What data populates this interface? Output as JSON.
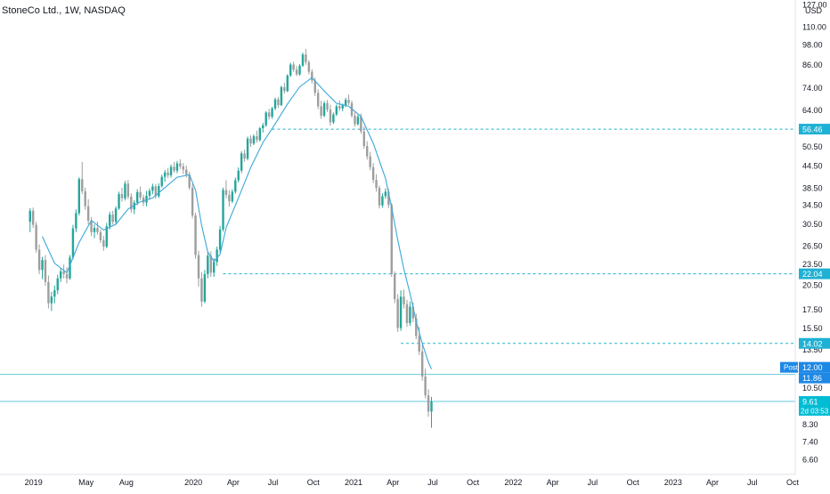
{
  "header": {
    "title": "StoneCo Ltd., 1W, NASDAQ"
  },
  "colors": {
    "up": "#26a69a",
    "down": "#9e9e9e",
    "ema": "#3ba7d8",
    "level_line": "#1fb1d4",
    "price_line": "#64c8dc",
    "post_badge": "#1e88e5",
    "last_badge": "#00bcd4",
    "axis_text": "#131722"
  },
  "chart_data": {
    "type": "candlestick",
    "title": "StoneCo Ltd., 1W, NASDAQ",
    "currency": "USD",
    "y_scale": "log",
    "ylim": [
      6.3,
      127
    ],
    "yticks": [
      "6.60",
      "7.40",
      "8.30",
      "9.30",
      "10.50",
      "13.50",
      "15.50",
      "17.50",
      "20.50",
      "23.50",
      "26.50",
      "30.50",
      "34.50",
      "38.50",
      "44.50",
      "50.50",
      "64.00",
      "74.00",
      "86.00",
      "98.00",
      "110.00",
      "127.00"
    ],
    "xlim": [
      "2018-11-26",
      "2023-10-01"
    ],
    "xticks": [
      {
        "date": "2019-01-01",
        "label": "2019"
      },
      {
        "date": "2019-05-01",
        "label": "May"
      },
      {
        "date": "2019-08-01",
        "label": "Aug"
      },
      {
        "date": "2020-01-01",
        "label": "2020"
      },
      {
        "date": "2020-04-01",
        "label": "Apr"
      },
      {
        "date": "2020-07-01",
        "label": "Jul"
      },
      {
        "date": "2020-10-01",
        "label": "Oct"
      },
      {
        "date": "2021-01-01",
        "label": "2021"
      },
      {
        "date": "2021-04-01",
        "label": "Apr"
      },
      {
        "date": "2021-07-01",
        "label": "Jul"
      },
      {
        "date": "2021-10-01",
        "label": "Oct"
      },
      {
        "date": "2022-01-01",
        "label": "2022"
      },
      {
        "date": "2022-04-01",
        "label": "Apr"
      },
      {
        "date": "2022-07-01",
        "label": "Jul"
      },
      {
        "date": "2022-10-01",
        "label": "Oct"
      },
      {
        "date": "2023-01-01",
        "label": "2023"
      },
      {
        "date": "2023-04-01",
        "label": "Apr"
      },
      {
        "date": "2023-07-01",
        "label": "Jul"
      },
      {
        "date": "2023-10-01",
        "label": "Oct"
      }
    ],
    "first_week": "2018-12-24",
    "candles": [
      [
        30.9,
        33.8,
        28.9,
        33.2
      ],
      [
        33.2,
        33.9,
        29.7,
        30.3
      ],
      [
        30.3,
        30.9,
        25.3,
        25.8
      ],
      [
        25.8,
        26.7,
        22.0,
        22.6
      ],
      [
        22.6,
        24.6,
        21.3,
        24.1
      ],
      [
        24.1,
        24.9,
        20.4,
        20.9
      ],
      [
        20.9,
        21.8,
        17.6,
        18.2
      ],
      [
        18.2,
        19.6,
        17.3,
        19.0
      ],
      [
        19.0,
        20.4,
        18.2,
        19.8
      ],
      [
        19.8,
        21.9,
        19.3,
        21.4
      ],
      [
        21.4,
        22.9,
        20.9,
        22.4
      ],
      [
        22.4,
        23.4,
        21.4,
        22.0
      ],
      [
        22.0,
        23.0,
        20.7,
        21.4
      ],
      [
        21.4,
        24.9,
        21.2,
        24.5
      ],
      [
        24.5,
        30.3,
        24.2,
        29.6
      ],
      [
        29.6,
        33.5,
        28.9,
        32.7
      ],
      [
        32.7,
        41.3,
        32.2,
        40.8
      ],
      [
        40.8,
        45.6,
        37.0,
        37.7
      ],
      [
        37.7,
        38.6,
        33.4,
        34.2
      ],
      [
        34.2,
        35.8,
        30.4,
        31.1
      ],
      [
        31.1,
        31.9,
        28.2,
        28.9
      ],
      [
        28.9,
        30.4,
        27.8,
        29.7
      ],
      [
        29.7,
        31.0,
        28.4,
        28.9
      ],
      [
        28.9,
        29.4,
        26.9,
        27.4
      ],
      [
        27.4,
        28.2,
        25.6,
        26.3
      ],
      [
        26.3,
        30.7,
        26.0,
        30.0
      ],
      [
        30.0,
        33.0,
        29.4,
        32.4
      ],
      [
        32.4,
        33.2,
        30.3,
        30.9
      ],
      [
        30.9,
        34.2,
        30.5,
        33.7
      ],
      [
        33.7,
        37.6,
        33.4,
        37.0
      ],
      [
        37.0,
        38.6,
        35.2,
        36.0
      ],
      [
        36.0,
        40.3,
        35.5,
        39.6
      ],
      [
        39.6,
        40.6,
        35.8,
        36.4
      ],
      [
        36.4,
        37.2,
        32.8,
        33.5
      ],
      [
        33.5,
        35.6,
        32.5,
        35.0
      ],
      [
        35.0,
        38.2,
        34.4,
        37.5
      ],
      [
        37.5,
        38.9,
        35.6,
        36.2
      ],
      [
        36.2,
        36.9,
        34.2,
        35.0
      ],
      [
        35.0,
        37.8,
        34.2,
        36.6
      ],
      [
        36.6,
        38.4,
        35.7,
        37.8
      ],
      [
        37.8,
        39.6,
        37.0,
        38.9
      ],
      [
        38.9,
        39.5,
        35.9,
        36.5
      ],
      [
        36.5,
        39.7,
        36.1,
        39.0
      ],
      [
        39.0,
        42.0,
        38.6,
        41.4
      ],
      [
        41.4,
        43.3,
        40.1,
        42.6
      ],
      [
        42.6,
        43.8,
        41.1,
        41.8
      ],
      [
        41.8,
        44.9,
        41.2,
        44.2
      ],
      [
        44.2,
        45.6,
        42.5,
        43.1
      ],
      [
        43.1,
        45.9,
        42.4,
        45.2
      ],
      [
        45.2,
        46.4,
        43.6,
        44.3
      ],
      [
        44.3,
        45.3,
        42.2,
        43.4
      ],
      [
        43.4,
        44.6,
        41.2,
        42.0
      ],
      [
        42.0,
        42.8,
        38.0,
        38.6
      ],
      [
        38.6,
        39.6,
        31.6,
        32.2
      ],
      [
        32.2,
        32.8,
        24.3,
        24.9
      ],
      [
        24.9,
        25.6,
        20.3,
        21.4
      ],
      [
        21.4,
        22.3,
        17.8,
        18.4
      ],
      [
        18.4,
        22.6,
        18.2,
        22.0
      ],
      [
        22.0,
        25.4,
        21.4,
        24.8
      ],
      [
        24.8,
        25.5,
        21.6,
        22.2
      ],
      [
        22.2,
        24.4,
        21.6,
        23.8
      ],
      [
        23.8,
        26.3,
        23.2,
        25.8
      ],
      [
        25.8,
        30.1,
        25.3,
        29.4
      ],
      [
        29.4,
        38.6,
        29.0,
        38.0
      ],
      [
        38.0,
        40.5,
        36.0,
        36.8
      ],
      [
        36.8,
        37.9,
        34.1,
        35.3
      ],
      [
        35.3,
        38.2,
        34.9,
        37.6
      ],
      [
        37.6,
        41.2,
        37.1,
        40.5
      ],
      [
        40.5,
        44.0,
        39.9,
        43.1
      ],
      [
        43.1,
        48.9,
        42.4,
        48.2
      ],
      [
        48.2,
        49.4,
        45.7,
        46.6
      ],
      [
        46.6,
        53.8,
        46.1,
        53.1
      ],
      [
        53.1,
        54.2,
        50.3,
        51.4
      ],
      [
        51.4,
        54.6,
        50.9,
        53.9
      ],
      [
        53.9,
        55.9,
        51.7,
        52.6
      ],
      [
        52.6,
        57.3,
        52.1,
        56.8
      ],
      [
        56.8,
        58.8,
        55.2,
        57.9
      ],
      [
        57.9,
        63.5,
        57.3,
        62.9
      ],
      [
        62.9,
        64.4,
        60.1,
        61.2
      ],
      [
        61.2,
        65.3,
        60.4,
        64.6
      ],
      [
        64.6,
        69.3,
        63.9,
        68.5
      ],
      [
        68.5,
        69.6,
        64.8,
        66.0
      ],
      [
        66.0,
        74.9,
        65.6,
        74.2
      ],
      [
        74.2,
        76.4,
        71.1,
        72.3
      ],
      [
        72.3,
        80.7,
        71.8,
        80.0
      ],
      [
        80.0,
        86.9,
        79.3,
        85.9
      ],
      [
        85.9,
        87.5,
        81.9,
        83.1
      ],
      [
        83.1,
        85.1,
        79.7,
        80.6
      ],
      [
        80.6,
        86.1,
        79.9,
        85.3
      ],
      [
        85.3,
        92.9,
        84.6,
        91.7
      ],
      [
        91.7,
        95.1,
        85.8,
        87.3
      ],
      [
        87.3,
        88.4,
        80.6,
        82.0
      ],
      [
        82.0,
        83.4,
        76.0,
        77.4
      ],
      [
        77.4,
        78.9,
        70.0,
        71.5
      ],
      [
        71.5,
        73.2,
        64.3,
        65.5
      ],
      [
        65.5,
        67.9,
        60.4,
        61.6
      ],
      [
        61.6,
        67.7,
        61.0,
        66.8
      ],
      [
        66.8,
        68.2,
        63.1,
        64.1
      ],
      [
        64.1,
        66.2,
        57.8,
        59.0
      ],
      [
        59.0,
        62.9,
        58.4,
        62.1
      ],
      [
        62.1,
        66.3,
        61.5,
        65.5
      ],
      [
        65.5,
        68.0,
        63.6,
        64.6
      ],
      [
        64.6,
        66.7,
        63.4,
        65.9
      ],
      [
        65.9,
        69.2,
        65.2,
        68.3
      ],
      [
        68.3,
        70.7,
        66.0,
        66.9
      ],
      [
        66.9,
        68.0,
        60.8,
        61.6
      ],
      [
        61.6,
        63.0,
        57.4,
        58.3
      ],
      [
        58.3,
        62.1,
        57.8,
        61.2
      ],
      [
        61.2,
        62.5,
        54.8,
        55.6
      ],
      [
        55.6,
        57.4,
        49.7,
        50.6
      ],
      [
        50.6,
        52.2,
        46.3,
        47.3
      ],
      [
        47.3,
        48.7,
        43.2,
        44.1
      ],
      [
        44.1,
        45.3,
        39.8,
        40.6
      ],
      [
        40.6,
        42.1,
        37.6,
        38.5
      ],
      [
        38.5,
        39.1,
        33.7,
        34.4
      ],
      [
        34.4,
        37.2,
        33.9,
        36.5
      ],
      [
        36.5,
        38.4,
        35.9,
        37.6
      ],
      [
        37.6,
        38.3,
        33.8,
        34.5
      ],
      [
        34.5,
        34.9,
        21.6,
        22.0
      ],
      [
        22.0,
        22.4,
        18.2,
        18.7
      ],
      [
        18.7,
        19.3,
        15.1,
        15.5
      ],
      [
        15.5,
        19.8,
        15.2,
        19.0
      ],
      [
        19.0,
        19.9,
        17.6,
        18.1
      ],
      [
        18.1,
        18.6,
        15.6,
        16.0
      ],
      [
        16.0,
        18.4,
        15.7,
        17.8
      ],
      [
        17.8,
        18.3,
        16.1,
        16.5
      ],
      [
        16.5,
        17.0,
        14.4,
        14.7
      ],
      [
        14.7,
        15.6,
        13.0,
        13.3
      ],
      [
        13.3,
        13.9,
        11.0,
        11.3
      ],
      [
        11.3,
        11.9,
        9.8,
        10.0
      ],
      [
        10.0,
        10.4,
        8.7,
        9.0
      ],
      [
        9.0,
        9.9,
        8.1,
        9.61
      ]
    ],
    "ema": [
      [
        4,
        28.1
      ],
      [
        8,
        23.6
      ],
      [
        12,
        22.2
      ],
      [
        16,
        27.0
      ],
      [
        20,
        31.2
      ],
      [
        24,
        29.3
      ],
      [
        28,
        30.4
      ],
      [
        32,
        33.6
      ],
      [
        36,
        35.2
      ],
      [
        40,
        36.1
      ],
      [
        44,
        38.6
      ],
      [
        48,
        41.3
      ],
      [
        52,
        42.0
      ],
      [
        54,
        38.0
      ],
      [
        56,
        30.2
      ],
      [
        58,
        25.4
      ],
      [
        60,
        23.9
      ],
      [
        62,
        25.0
      ],
      [
        64,
        29.8
      ],
      [
        68,
        36.1
      ],
      [
        72,
        44.0
      ],
      [
        76,
        51.8
      ],
      [
        80,
        58.4
      ],
      [
        84,
        66.5
      ],
      [
        88,
        74.3
      ],
      [
        92,
        78.9
      ],
      [
        96,
        72.3
      ],
      [
        100,
        66.8
      ],
      [
        104,
        65.5
      ],
      [
        108,
        61.3
      ],
      [
        112,
        51.5
      ],
      [
        116,
        41.0
      ],
      [
        118,
        33.9
      ],
      [
        120,
        27.5
      ],
      [
        122,
        22.7
      ],
      [
        124,
        19.4
      ],
      [
        126,
        16.2
      ],
      [
        128,
        14.0
      ],
      [
        130,
        12.4
      ],
      [
        131,
        11.86
      ]
    ],
    "levels": [
      {
        "value": 56.46,
        "label": "56.46",
        "from": 79
      },
      {
        "value": 22.04,
        "label": "22.04",
        "from": 63
      },
      {
        "value": 14.02,
        "label": "14.02",
        "from": 121
      }
    ],
    "post_price": {
      "value": 12.0,
      "label": "Post",
      "price_label": "12.00"
    },
    "ema_price": {
      "value": 11.86,
      "label": "11.86"
    },
    "last_price": {
      "value": 9.61,
      "label": "9.61",
      "countdown": "2d 03:53"
    }
  }
}
